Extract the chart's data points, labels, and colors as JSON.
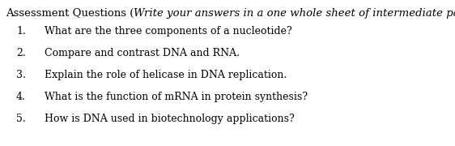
{
  "background_color": "#ffffff",
  "title_normal": "Assessment Questions (",
  "title_italic": "Write your answers in a one whole sheet of intermediate paper.)",
  "questions": [
    "What are the three components of a nucleotide?",
    "Compare and contrast DNA and RNA.",
    "Explain the role of helicase in DNA replication.",
    "What is the function of mRNA in protein synthesis?",
    "How is DNA used in biotechnology applications?"
  ],
  "title_fontsize": 9.5,
  "question_fontsize": 9.0,
  "text_color": "#000000",
  "fig_width": 5.62,
  "fig_height": 1.8,
  "dpi": 100
}
